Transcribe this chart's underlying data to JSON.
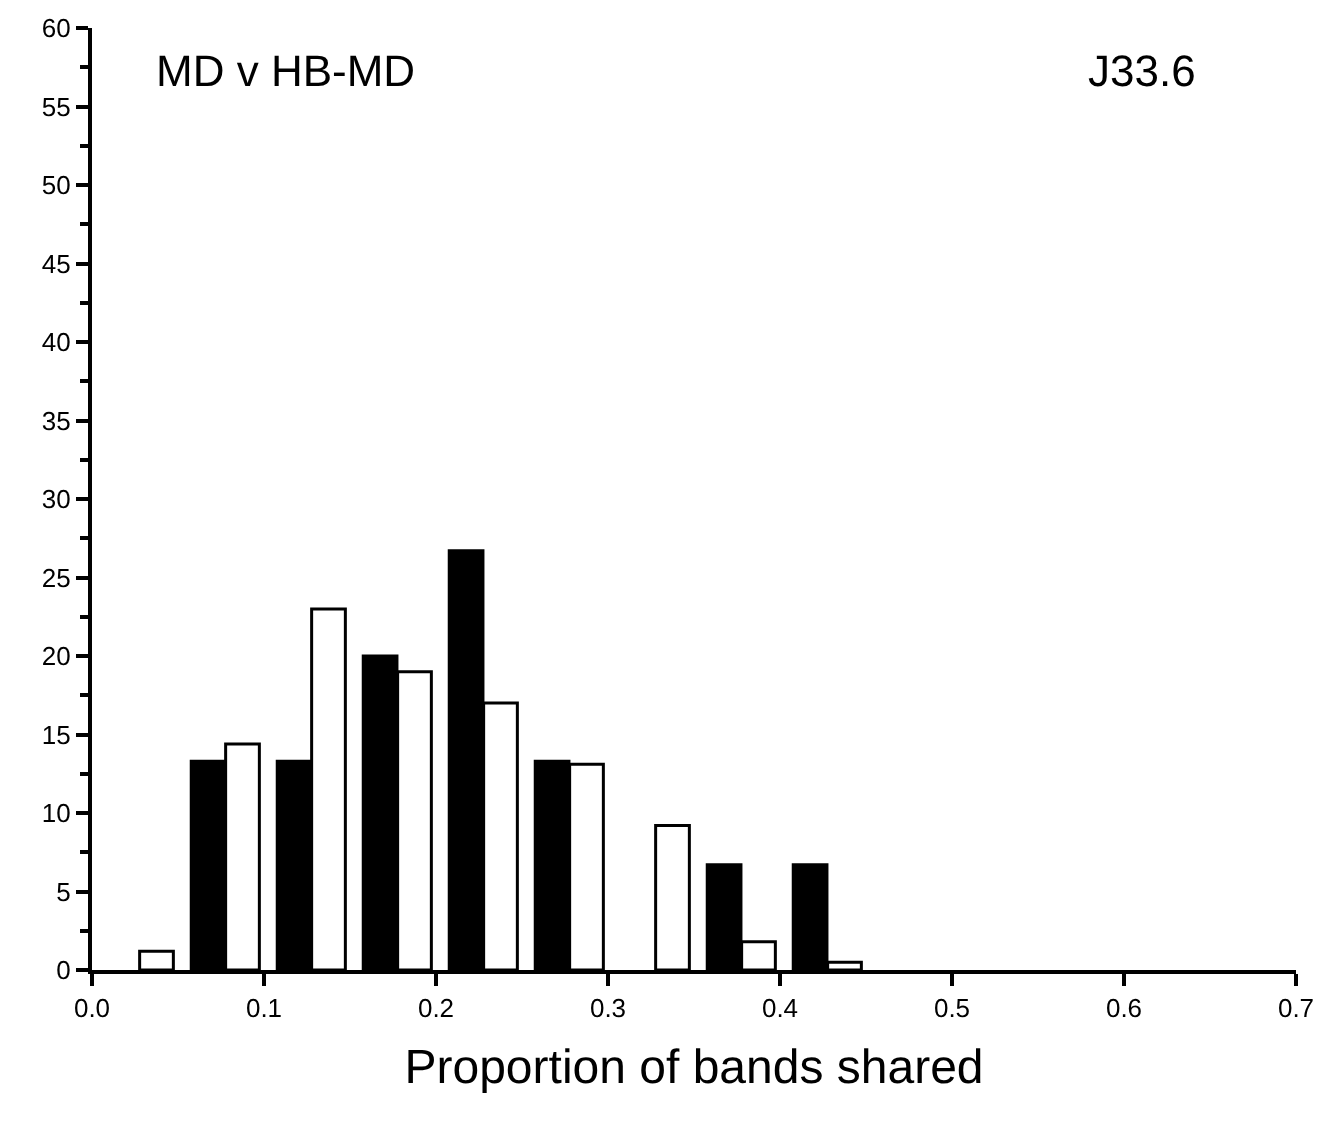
{
  "chart_data": {
    "type": "histogram",
    "xlabel": "Proportion of bands shared",
    "annotations": [
      "MD v HB-MD",
      "J33.6"
    ],
    "bins": [
      0,
      0.05,
      0.1,
      0.15,
      0.2,
      0.25,
      0.3,
      0.35,
      0.4,
      0.45,
      0.5,
      0.55,
      0.6,
      0.65,
      0.7
    ],
    "series": [
      {
        "color": "#000000",
        "values": [
          0,
          13.3,
          13.3,
          20,
          26.7,
          13.3,
          0,
          6.7,
          6.7,
          0,
          0,
          0,
          0,
          0
        ]
      },
      {
        "color": "#ffffff",
        "values": [
          1.2,
          14.4,
          23,
          19,
          17,
          13.1,
          9.2,
          1.8,
          0.5,
          0,
          0,
          0,
          0,
          0
        ]
      }
    ],
    "xlim": [
      0,
      0.7
    ],
    "xticks": [
      {
        "value": 0,
        "label": "0.0"
      },
      0.1,
      0.2,
      0.3,
      0.4,
      0.5,
      0.6,
      0.7
    ],
    "ylim": [
      0,
      60
    ],
    "yticks": [
      0,
      5,
      10,
      15,
      20,
      25,
      30,
      35,
      40,
      45,
      50,
      55,
      60
    ],
    "grid": false
  }
}
